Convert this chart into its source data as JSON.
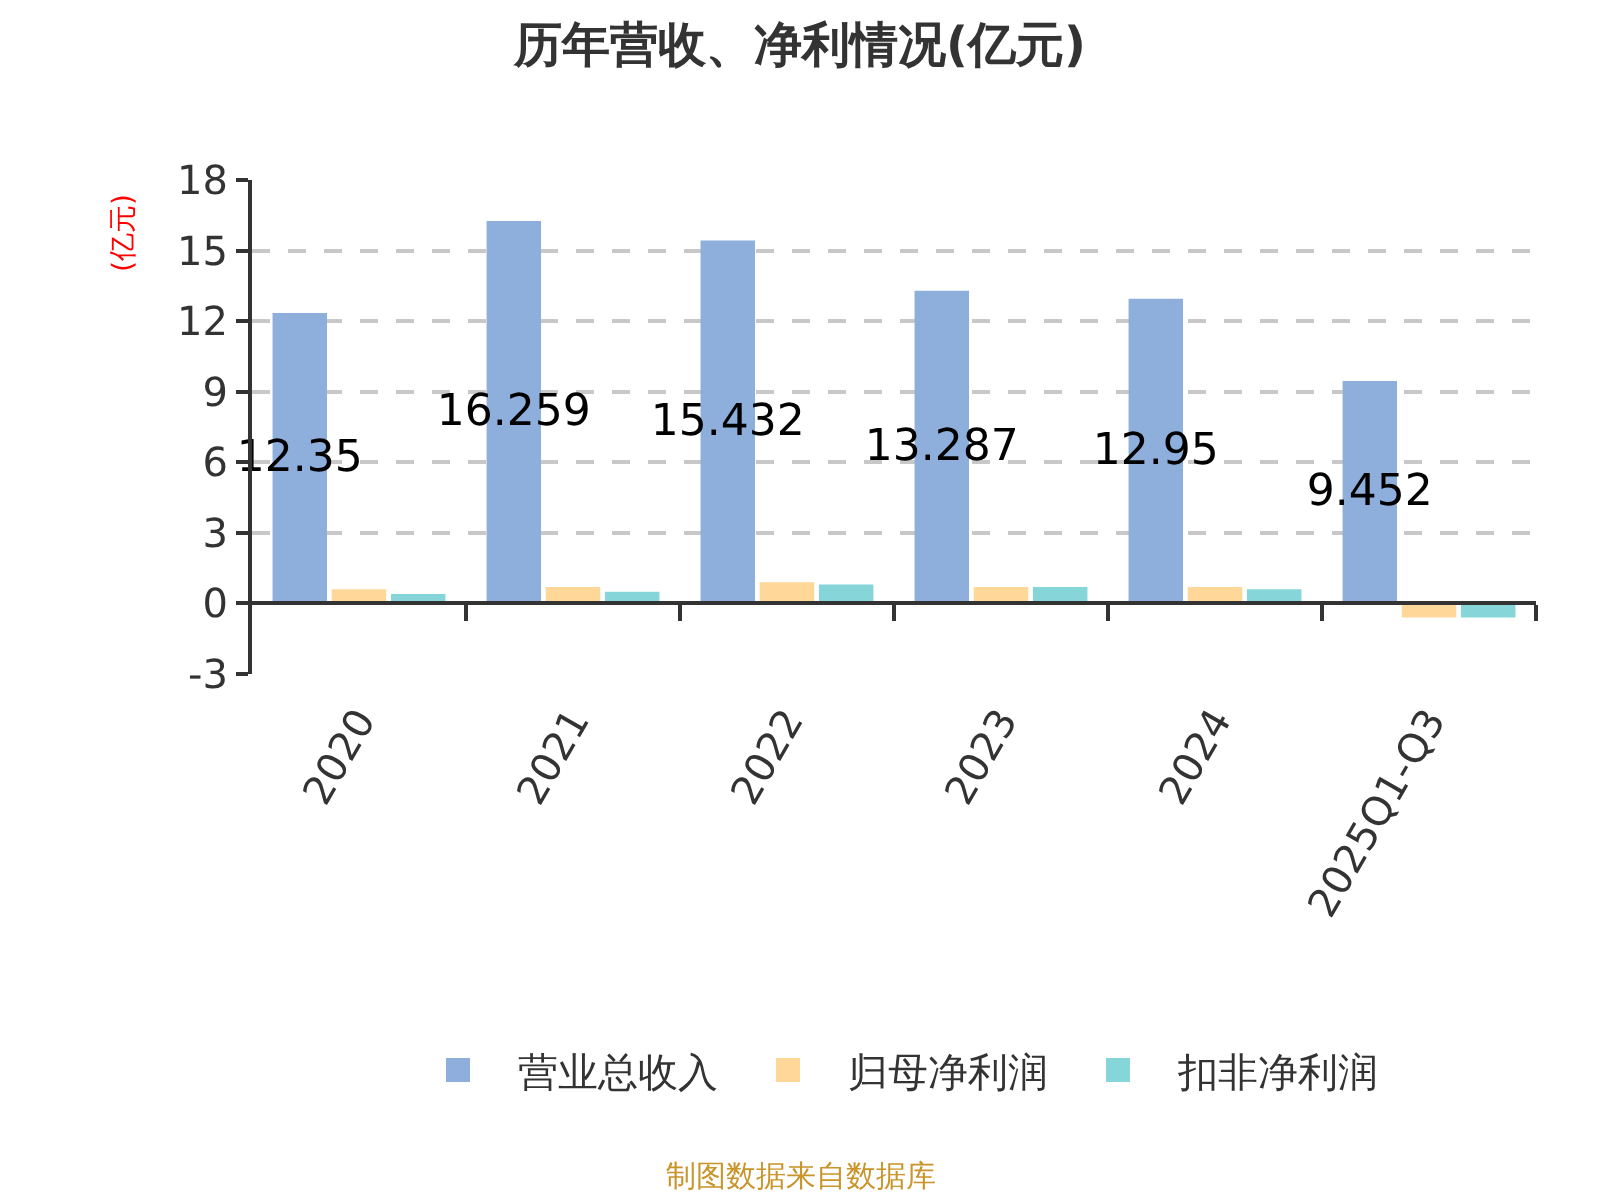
{
  "chart_data": {
    "type": "bar",
    "title": "历年营收、净利情况(亿元)",
    "ylabel": "(亿元)",
    "categories": [
      "2020",
      "2021",
      "2022",
      "2023",
      "2024",
      "2025Q1-Q3"
    ],
    "series": [
      {
        "name": "营业总收入",
        "color": "#8eaedc",
        "values": [
          12.35,
          16.259,
          15.432,
          13.287,
          12.95,
          9.452
        ],
        "value_labels": [
          "12.35",
          "16.259",
          "15.432",
          "13.287",
          "12.95",
          "9.452"
        ]
      },
      {
        "name": "归母净利润",
        "color": "#ffd799",
        "values": [
          0.6,
          0.7,
          0.9,
          0.7,
          0.7,
          -0.6
        ]
      },
      {
        "name": "扣非净利润",
        "color": "#86d5d9",
        "values": [
          0.4,
          0.5,
          0.8,
          0.7,
          0.6,
          -0.6
        ]
      }
    ],
    "ylim": [
      -3,
      18
    ],
    "yticks": [
      -3,
      0,
      3,
      6,
      9,
      12,
      15,
      18
    ],
    "grid": "y",
    "legend": "bottom",
    "annotations": [
      "制图数据来自数据库"
    ]
  }
}
